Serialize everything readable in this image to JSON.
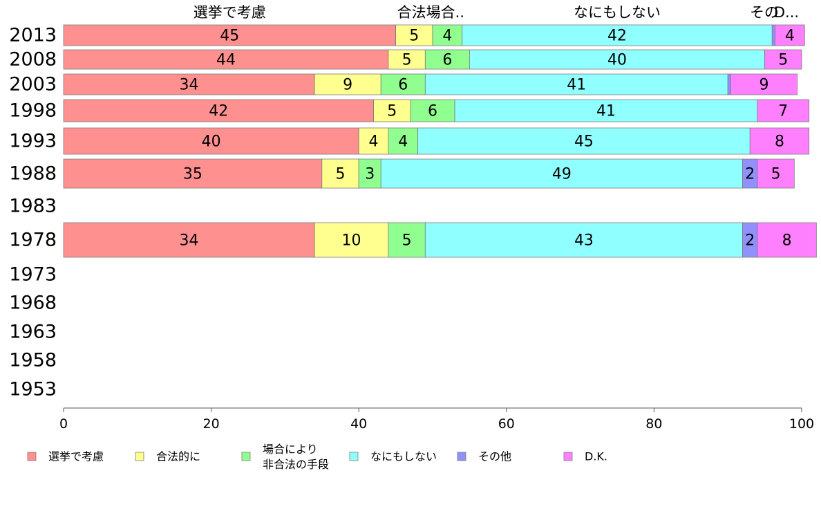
{
  "chart_data": {
    "type": "bar",
    "orientation": "horizontal",
    "stacked": true,
    "categories": [
      "2013",
      "2008",
      "2003",
      "1998",
      "1993",
      "1988",
      "1983",
      "1978",
      "1973",
      "1968",
      "1963",
      "1958",
      "1953"
    ],
    "series": [
      {
        "name": "選挙で考慮",
        "values": [
          45,
          44,
          34,
          42,
          40,
          35,
          null,
          34,
          null,
          null,
          null,
          null,
          null
        ],
        "color": "#ff9090"
      },
      {
        "name": "合法的に",
        "values": [
          5,
          5,
          9,
          5,
          4,
          5,
          null,
          10,
          null,
          null,
          null,
          null,
          null
        ],
        "color": "#ffff90"
      },
      {
        "name": "場合により\n非合法の手段",
        "values": [
          4,
          6,
          6,
          6,
          4,
          3,
          null,
          5,
          null,
          null,
          null,
          null,
          null
        ],
        "color": "#90ff90"
      },
      {
        "name": "なにもしない",
        "values": [
          42,
          40,
          41,
          41,
          45,
          49,
          null,
          43,
          null,
          null,
          null,
          null,
          null
        ],
        "color": "#90ffff"
      },
      {
        "name": "その他",
        "values": [
          0.4,
          0,
          0.4,
          0,
          0,
          2,
          null,
          2,
          null,
          null,
          null,
          null,
          null
        ],
        "color": "#9090ff"
      },
      {
        "name": "D.K.",
        "values": [
          4,
          5,
          9,
          7,
          8,
          5,
          null,
          8,
          null,
          null,
          null,
          null,
          null
        ],
        "color": "#ff80ff"
      }
    ],
    "top_labels": [
      "選挙で考慮",
      "合法場合..",
      "なにもしない",
      "その",
      "D..."
    ],
    "xlim": [
      0,
      100
    ],
    "x_ticks": [
      0,
      20,
      40,
      60,
      80,
      100
    ],
    "legend_position": "bottom",
    "grid": false
  }
}
